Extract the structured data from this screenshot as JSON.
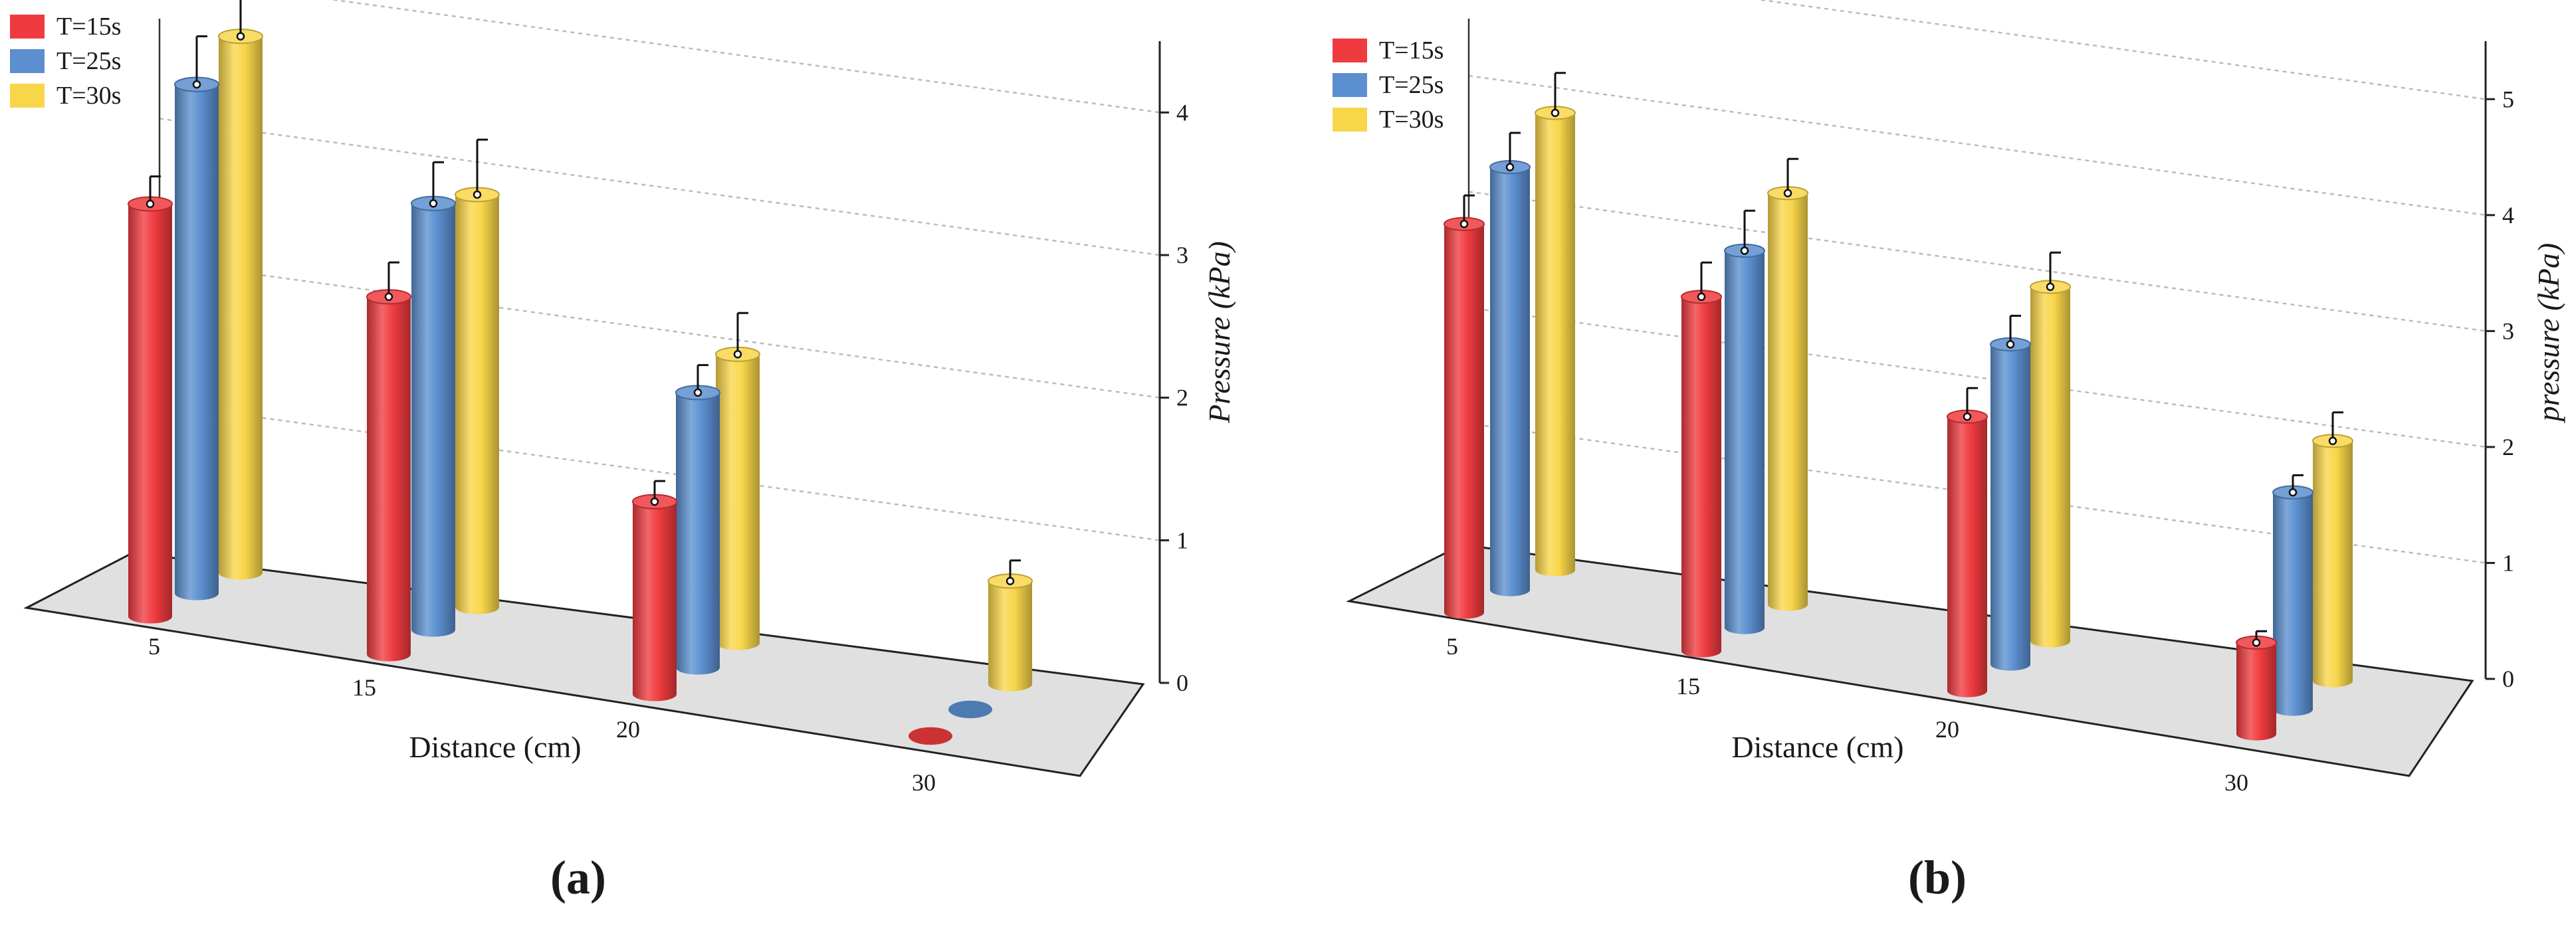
{
  "colors": {
    "red": "#ef3b3f",
    "blue": "#5b8fcf",
    "yellow": "#f8d64a",
    "floor": "#e0e0e0",
    "wall_line": "#333333",
    "grid": "#bbbbbb"
  },
  "chart_data": [
    {
      "type": "bar",
      "subtitle": "(a)",
      "xlabel": "Distance (cm)",
      "ylabel": "Pressure (kPa)",
      "categories": [
        "5",
        "15",
        "20",
        "30"
      ],
      "y_ticks": [
        "0",
        "1",
        "2",
        "3",
        "4"
      ],
      "ylim": [
        0,
        4.5
      ],
      "grid": true,
      "legend_position": "top-left",
      "series": [
        {
          "name": "T=15s",
          "color_key": "red",
          "values": [
            3.0,
            2.6,
            1.4,
            0.0
          ],
          "errors": [
            0.2,
            0.25,
            0.15,
            0.0
          ]
        },
        {
          "name": "T=25s",
          "color_key": "blue",
          "values": [
            3.7,
            3.1,
            2.0,
            0.0
          ],
          "errors": [
            0.35,
            0.3,
            0.2,
            0.0
          ]
        },
        {
          "name": "T=30s",
          "color_key": "yellow",
          "values": [
            3.9,
            3.0,
            2.1,
            0.75
          ],
          "errors": [
            0.35,
            0.4,
            0.3,
            0.15
          ]
        }
      ]
    },
    {
      "type": "bar",
      "subtitle": "(b)",
      "xlabel": "Distance (cm)",
      "ylabel": "pressure (kPa)",
      "categories": [
        "5",
        "15",
        "20",
        "30"
      ],
      "y_ticks": [
        "0",
        "1",
        "2",
        "3",
        "4",
        "5"
      ],
      "ylim": [
        0,
        5.5
      ],
      "grid": true,
      "legend_position": "top-left",
      "series": [
        {
          "name": "T=15s",
          "color_key": "red",
          "values": [
            3.4,
            3.1,
            2.4,
            0.8
          ],
          "errors": [
            0.25,
            0.3,
            0.25,
            0.1
          ]
        },
        {
          "name": "T=25s",
          "color_key": "blue",
          "values": [
            3.7,
            3.3,
            2.8,
            1.9
          ],
          "errors": [
            0.3,
            0.35,
            0.25,
            0.15
          ]
        },
        {
          "name": "T=30s",
          "color_key": "yellow",
          "values": [
            4.0,
            3.6,
            3.1,
            2.1
          ],
          "errors": [
            0.35,
            0.3,
            0.3,
            0.25
          ]
        }
      ]
    }
  ]
}
